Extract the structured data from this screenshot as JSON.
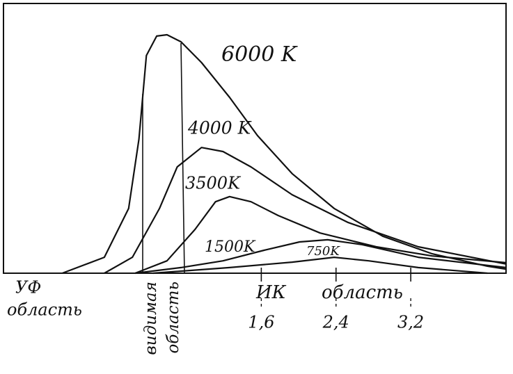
{
  "chart_data": {
    "type": "line",
    "x_annotations": [
      "УФ",
      "область",
      "видимая",
      "область",
      "ИК",
      "область"
    ],
    "xlim": [
      -1.16,
      4.22
    ],
    "xticks": [
      {
        "value": 1.6,
        "label": "1,6"
      },
      {
        "value": 2.4,
        "label": "2,4"
      },
      {
        "value": 3.2,
        "label": "3,2"
      }
    ],
    "ylim": [
      0,
      100
    ],
    "color": "#111111",
    "series": [
      {
        "name": "6000 K",
        "x": [
          -0.53,
          -0.08,
          0.18,
          0.29,
          0.37,
          0.48,
          0.59,
          0.74,
          0.96,
          1.26,
          1.56,
          1.93,
          2.38,
          2.9,
          3.43,
          4.02,
          4.22
        ],
        "values": [
          0,
          5.9,
          24,
          49.7,
          80.7,
          87.9,
          88.4,
          85.8,
          78.1,
          65.2,
          51,
          36.9,
          24,
          13.7,
          7.2,
          2.6,
          1.5
        ]
      },
      {
        "name": "4000 K",
        "x": [
          -0.08,
          0.22,
          0.51,
          0.7,
          0.96,
          1.19,
          1.49,
          1.93,
          2.53,
          3.28,
          4.22
        ],
        "values": [
          0,
          5.9,
          24,
          39.4,
          46.6,
          45.1,
          39.4,
          29.1,
          18.8,
          9.8,
          3.4
        ]
      },
      {
        "name": "3500K",
        "x": [
          0.25,
          0.59,
          0.89,
          1.11,
          1.26,
          1.49,
          1.78,
          2.23,
          2.83,
          3.43,
          4.22
        ],
        "values": [
          0,
          4.6,
          16.2,
          26.5,
          28.4,
          26.5,
          21.4,
          14.9,
          9.8,
          6.4,
          3.9
        ]
      },
      {
        "name": "1500K",
        "x": [
          0.25,
          0.74,
          1.19,
          1.63,
          2.01,
          2.31,
          2.68,
          3.28,
          4.22
        ],
        "values": [
          0,
          2.1,
          4.6,
          8.5,
          11.6,
          12.4,
          10.6,
          5.9,
          2.1
        ]
      },
      {
        "name": "750K",
        "x": [
          0.44,
          1.26,
          1.93,
          2.38,
          2.75,
          3.28,
          4.02
        ],
        "values": [
          0,
          2.1,
          4.1,
          5.9,
          4.6,
          2.1,
          0
        ]
      }
    ]
  }
}
